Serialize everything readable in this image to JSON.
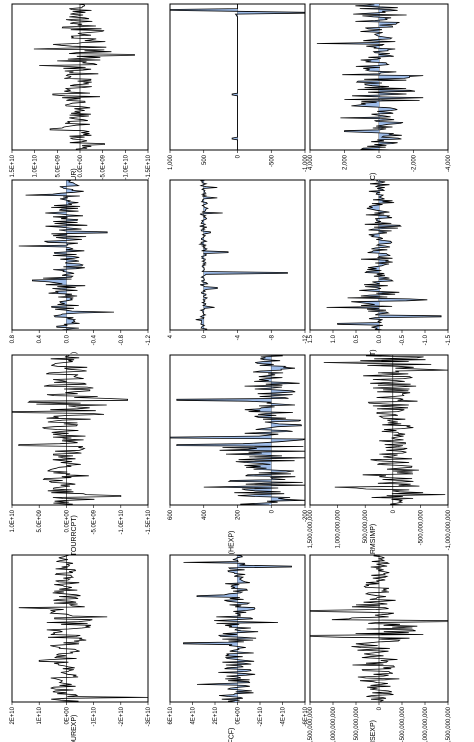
{
  "figure": {
    "orientation": "rotated-90-ccw",
    "area_color": "#9dbbe8",
    "line_color": "#000000"
  },
  "chart_data": [
    {
      "type": "area",
      "title": "D(GDPPC)",
      "ylim": [
        -4000,
        4000
      ],
      "ticks": [
        "4,000",
        "2,000",
        "0",
        "-2,000",
        "-4,000"
      ],
      "amplitude": [
        0.22,
        0.18,
        0.15,
        0.12,
        0.25,
        0.1,
        0.14,
        0.18,
        0.15,
        0.12,
        0.1,
        0.16,
        0.13,
        0.22,
        0.14,
        0.12,
        0.1,
        0.11,
        0.12,
        0.08,
        0.1,
        0.14,
        0.12,
        0.16,
        0.18,
        0.22,
        0.18,
        0.2,
        0.3,
        0.45,
        0.25,
        0.2,
        0.18,
        0.16,
        0.22,
        0.3,
        0.25,
        0.2,
        0.22,
        0.3,
        0.28,
        0.22,
        0.16,
        0.14,
        0.12,
        0.1,
        0.12,
        0.14,
        0.2,
        0.22,
        0.16,
        0.12,
        0.22,
        0.18,
        0.16,
        0.2,
        0.14,
        0.12,
        0.14,
        0.18
      ],
      "spikes": [
        [
          0.27,
          0.45
        ],
        [
          0.5,
          -0.22
        ],
        [
          0.64,
          -0.32
        ],
        [
          0.78,
          0.28
        ],
        [
          0.87,
          0.25
        ]
      ]
    },
    {
      "type": "area",
      "title": "D(ENRGINT)",
      "ylim": [
        -1.5,
        1.5
      ],
      "ticks": [
        "1.5",
        "1.0",
        "0.5",
        "0.0",
        "-0.5",
        "-1.0",
        "-1.5"
      ],
      "amplitude": [
        0.05,
        0.08,
        0.06,
        0.12,
        0.14,
        0.1,
        0.08,
        0.06,
        0.1,
        0.14,
        0.12,
        0.1,
        0.08,
        0.1,
        0.12,
        0.1,
        0.08,
        0.12,
        0.16,
        0.14,
        0.1,
        0.08,
        0.06,
        0.08,
        0.1,
        0.12,
        0.08,
        0.06,
        0.08,
        0.1,
        0.12,
        0.14,
        0.12,
        0.08,
        0.06,
        0.1,
        0.12,
        0.08,
        0.06,
        0.08,
        0.1,
        0.12,
        0.14,
        0.18,
        0.16,
        0.14,
        0.2,
        0.3,
        0.24,
        0.18,
        0.14,
        0.12,
        0.1,
        0.08,
        0.1,
        0.12,
        0.08,
        0.06,
        0.08,
        0.06
      ],
      "spikes": [
        [
          0.8,
          -0.35
        ],
        [
          0.85,
          0.38
        ],
        [
          0.91,
          -0.45
        ],
        [
          0.96,
          0.3
        ]
      ]
    },
    {
      "type": "line",
      "title": "D(ARMSIMP)",
      "ylim": [
        -1000000000,
        1500000000
      ],
      "ticks": [
        "1,500,000,000",
        "1,000,000,000",
        "500,000,000",
        "0",
        "-500,000,000",
        "-1,000,000,000"
      ],
      "amplitude": [
        0.4,
        0.35,
        0.3,
        0.28,
        0.25,
        0.3,
        0.2,
        0.22,
        0.25,
        0.18,
        0.15,
        0.18,
        0.2,
        0.22,
        0.18,
        0.15,
        0.12,
        0.15,
        0.18,
        0.2,
        0.15,
        0.12,
        0.1,
        0.12,
        0.15,
        0.12,
        0.1,
        0.12,
        0.14,
        0.16,
        0.12,
        0.1,
        0.12,
        0.15,
        0.12,
        0.1,
        0.12,
        0.14,
        0.12,
        0.1,
        0.14,
        0.18,
        0.16,
        0.12,
        0.14,
        0.18,
        0.2,
        0.22,
        0.18,
        0.16,
        0.2,
        0.25,
        0.22,
        0.3,
        0.28,
        0.26,
        0.3,
        0.25,
        0.22,
        0.2
      ],
      "spikes": [
        [
          0.05,
          0.5
        ],
        [
          0.1,
          -0.4
        ],
        [
          0.88,
          0.42
        ],
        [
          0.93,
          -0.38
        ]
      ]
    },
    {
      "type": "line",
      "title": "D(ARMSEXP)",
      "ylim": [
        -1500000000,
        1500000000
      ],
      "ticks": [
        "1,500,000,000",
        "1,000,000,000",
        "500,000,000",
        "0",
        "-500,000,000",
        "-1,000,000,000",
        "-1,500,000,000"
      ],
      "amplitude": [
        0.06,
        0.05,
        0.06,
        0.08,
        0.07,
        0.06,
        0.08,
        0.1,
        0.08,
        0.06,
        0.08,
        0.1,
        0.12,
        0.1,
        0.08,
        0.1,
        0.12,
        0.14,
        0.12,
        0.16,
        0.2,
        0.22,
        0.18,
        0.24,
        0.3,
        0.4,
        0.35,
        0.3,
        0.45,
        0.4,
        0.38,
        0.3,
        0.35,
        0.4,
        0.28,
        0.22,
        0.18,
        0.2,
        0.16,
        0.14,
        0.12,
        0.14,
        0.16,
        0.18,
        0.2,
        0.16,
        0.14,
        0.12,
        0.16,
        0.2,
        0.18,
        0.16,
        0.12,
        0.1,
        0.08,
        0.12,
        0.14,
        0.1,
        0.08,
        0.06
      ],
      "spikes": [
        [
          0.38,
          0.62
        ],
        [
          0.45,
          -0.58
        ],
        [
          0.55,
          0.5
        ]
      ]
    },
    {
      "type": "area",
      "title": "D(INF)",
      "ylim": [
        -1000,
        1000
      ],
      "ticks": [
        "1,000",
        "500",
        "0",
        "-500",
        "-1,000"
      ],
      "amplitude": [
        0.0,
        0.0,
        0.01,
        0.0,
        0.02,
        0.0,
        0.0,
        0.0,
        0.0,
        0.0,
        0.0,
        0.0,
        0.0,
        0.0,
        0.0,
        0.0,
        0.0,
        0.0,
        0.0,
        0.0,
        0.0,
        0.0,
        0.0,
        0.0,
        0.0,
        0.0,
        0.0,
        0.0,
        0.0,
        0.0,
        0.0,
        0.0,
        0.0,
        0.0,
        0.0,
        0.0,
        0.0,
        0.0,
        0.0,
        0.0,
        0.0,
        0.0,
        0.0,
        0.0,
        0.0,
        0.0,
        0.0,
        0.0,
        0.0,
        0.0,
        0.0,
        0.0,
        0.0,
        0.0,
        0.0,
        0.0,
        0.0,
        0.0,
        0.0,
        0.0
      ],
      "spikes": [
        [
          0.04,
          0.86
        ],
        [
          0.06,
          -0.92
        ],
        [
          0.62,
          0.04
        ],
        [
          0.92,
          0.04
        ]
      ]
    },
    {
      "type": "area",
      "title": "D(INCTB)",
      "ylim": [
        -12,
        4
      ],
      "ticks": [
        "4",
        "0",
        "-4",
        "-8",
        "-12"
      ],
      "amplitude": [
        0.02,
        0.02,
        0.03,
        0.02,
        0.03,
        0.02,
        0.03,
        0.02,
        0.02,
        0.03,
        0.02,
        0.03,
        0.02,
        0.03,
        0.02,
        0.03,
        0.02,
        0.02,
        0.03,
        0.02,
        0.03,
        0.02,
        0.03,
        0.02,
        0.02,
        0.03,
        0.02,
        0.03,
        0.02,
        0.03,
        0.02,
        0.03,
        0.02,
        0.02,
        0.03,
        0.02,
        0.03,
        0.02,
        0.03,
        0.02,
        0.02,
        0.03,
        0.02,
        0.03,
        0.02,
        0.03,
        0.02,
        0.03,
        0.02,
        0.02,
        0.03,
        0.02,
        0.03,
        0.02,
        0.03,
        0.02,
        0.02,
        0.03,
        0.02,
        0.03
      ],
      "spikes": [
        [
          0.05,
          -0.1
        ],
        [
          0.12,
          -0.1
        ],
        [
          0.22,
          -0.14
        ],
        [
          0.35,
          -0.05
        ],
        [
          0.48,
          -0.18
        ],
        [
          0.62,
          -0.62
        ],
        [
          0.72,
          -0.1
        ],
        [
          0.85,
          -0.08
        ],
        [
          0.93,
          0.06
        ]
      ]
    },
    {
      "type": "area",
      "title": "D(HEXP)",
      "ylim": [
        -200,
        600
      ],
      "ticks": [
        "600",
        "400",
        "200",
        "0",
        "-200"
      ],
      "amplitude": [
        0.1,
        0.12,
        0.1,
        0.15,
        0.12,
        0.18,
        0.15,
        0.2,
        0.16,
        0.12,
        0.18,
        0.22,
        0.2,
        0.16,
        0.22,
        0.18,
        0.16,
        0.2,
        0.18,
        0.16,
        0.2,
        0.24,
        0.22,
        0.2,
        0.25,
        0.28,
        0.3,
        0.26,
        0.35,
        0.3,
        0.28,
        0.26,
        0.32,
        0.36,
        0.3,
        0.28,
        0.4,
        0.5,
        0.45,
        0.38,
        0.3,
        0.28,
        0.32,
        0.28,
        0.24,
        0.26,
        0.3,
        0.34,
        0.28,
        0.3,
        0.32,
        0.35,
        0.38,
        0.3,
        0.28,
        0.32,
        0.26,
        0.22,
        0.24,
        0.26
      ],
      "spikes": [
        [
          0.3,
          0.7
        ],
        [
          0.55,
          0.8
        ],
        [
          0.6,
          0.7
        ],
        [
          0.88,
          0.5
        ],
        [
          0.97,
          -0.25
        ]
      ]
    },
    {
      "type": "area",
      "title": "D(GFCF)",
      "ylim": [
        -60000000000,
        60000000000
      ],
      "ticks": [
        "6E+10",
        "4E+10",
        "2E+10",
        "0E+00",
        "-2E+10",
        "-4E+10",
        "-6E+10"
      ],
      "amplitude": [
        0.04,
        0.05,
        0.04,
        0.06,
        0.05,
        0.08,
        0.1,
        0.08,
        0.07,
        0.06,
        0.08,
        0.1,
        0.09,
        0.08,
        0.1,
        0.12,
        0.1,
        0.08,
        0.1,
        0.14,
        0.18,
        0.16,
        0.14,
        0.12,
        0.16,
        0.18,
        0.22,
        0.2,
        0.18,
        0.16,
        0.14,
        0.16,
        0.18,
        0.2,
        0.16,
        0.14,
        0.12,
        0.14,
        0.16,
        0.14,
        0.12,
        0.1,
        0.12,
        0.14,
        0.12,
        0.1,
        0.12,
        0.16,
        0.14,
        0.12,
        0.1,
        0.12,
        0.14,
        0.12,
        0.1,
        0.12,
        0.14,
        0.16,
        0.14,
        0.12
      ],
      "spikes": [
        [
          0.05,
          0.4
        ],
        [
          0.08,
          -0.4
        ],
        [
          0.28,
          0.3
        ],
        [
          0.46,
          -0.3
        ],
        [
          0.6,
          0.4
        ],
        [
          0.88,
          0.3
        ]
      ]
    },
    {
      "type": "line",
      "title": "D(NETTOUR)",
      "ylim": [
        -15000000000,
        15000000000
      ],
      "ticks": [
        "1.5E+10",
        "1.0E+10",
        "5.0E+09",
        "0.0E+00",
        "-5.0E+09",
        "-1.0E+10",
        "-1.5E+10"
      ],
      "amplitude": [
        0.06,
        0.08,
        0.1,
        0.12,
        0.1,
        0.14,
        0.12,
        0.1,
        0.16,
        0.18,
        0.2,
        0.18,
        0.14,
        0.12,
        0.16,
        0.2,
        0.24,
        0.3,
        0.35,
        0.3,
        0.4,
        0.35,
        0.28,
        0.22,
        0.18,
        0.16,
        0.14,
        0.12,
        0.16,
        0.18,
        0.14,
        0.12,
        0.1,
        0.12,
        0.14,
        0.12,
        0.1,
        0.14,
        0.16,
        0.12,
        0.1,
        0.12,
        0.1,
        0.08,
        0.1,
        0.12,
        0.1,
        0.08,
        0.1,
        0.12,
        0.14,
        0.1,
        0.08,
        0.1,
        0.12,
        0.1,
        0.08,
        0.1,
        0.12,
        0.1
      ],
      "spikes": [
        [
          0.35,
          -0.4
        ],
        [
          0.42,
          0.3
        ],
        [
          0.62,
          0.2
        ],
        [
          0.86,
          0.22
        ],
        [
          0.96,
          -0.18
        ]
      ]
    },
    {
      "type": "area",
      "title": "D(NLTEXP)",
      "ylim": [
        -1.2,
        0.8
      ],
      "ticks": [
        "0.8",
        "0.4",
        "0.0",
        "-0.4",
        "-0.8",
        "-1.2"
      ],
      "amplitude": [
        0.08,
        0.1,
        0.12,
        0.1,
        0.14,
        0.12,
        0.1,
        0.08,
        0.1,
        0.14,
        0.12,
        0.1,
        0.14,
        0.18,
        0.16,
        0.12,
        0.1,
        0.14,
        0.16,
        0.12,
        0.1,
        0.12,
        0.16,
        0.2,
        0.18,
        0.14,
        0.12,
        0.1,
        0.14,
        0.12,
        0.1,
        0.14,
        0.18,
        0.16,
        0.12,
        0.14,
        0.12,
        0.1,
        0.16,
        0.2,
        0.22,
        0.18,
        0.14,
        0.12,
        0.1,
        0.14,
        0.16,
        0.12,
        0.1,
        0.12,
        0.14,
        0.1,
        0.08,
        0.1,
        0.12,
        0.14,
        0.12,
        0.1,
        0.08,
        0.1
      ],
      "spikes": [
        [
          0.1,
          0.3
        ],
        [
          0.35,
          -0.3
        ],
        [
          0.44,
          0.35
        ],
        [
          0.67,
          0.25
        ],
        [
          0.88,
          -0.35
        ]
      ]
    },
    {
      "type": "line",
      "title": "D(INTTOURRCPT)",
      "ylim": [
        -15000000000,
        10000000000
      ],
      "ticks": [
        "1.0E+10",
        "5.0E+09",
        "0.0E+00",
        "-5.0E+09",
        "-1.0E+10",
        "-1.5E+10"
      ],
      "amplitude": [
        0.1,
        0.12,
        0.14,
        0.12,
        0.16,
        0.14,
        0.18,
        0.2,
        0.16,
        0.14,
        0.12,
        0.16,
        0.2,
        0.24,
        0.22,
        0.2,
        0.26,
        0.3,
        0.28,
        0.24,
        0.3,
        0.36,
        0.34,
        0.3,
        0.26,
        0.22,
        0.2,
        0.24,
        0.2,
        0.18,
        0.16,
        0.2,
        0.18,
        0.16,
        0.14,
        0.12,
        0.14,
        0.16,
        0.14,
        0.12,
        0.1,
        0.12,
        0.14,
        0.12,
        0.1,
        0.14,
        0.16,
        0.14,
        0.18,
        0.2,
        0.18,
        0.16,
        0.14,
        0.12,
        0.16,
        0.2,
        0.24,
        0.22,
        0.18,
        0.14
      ],
      "spikes": [
        [
          0.3,
          -0.45
        ],
        [
          0.38,
          0.4
        ],
        [
          0.6,
          0.35
        ],
        [
          0.94,
          -0.4
        ]
      ]
    },
    {
      "type": "line",
      "title": "D(INTTOUREXP)",
      "ylim": [
        -30000000000,
        20000000000
      ],
      "ticks": [
        "2E+10",
        "1E+10",
        "0E+00",
        "-1E+10",
        "-2E+10",
        "-3E+10"
      ],
      "amplitude": [
        0.05,
        0.06,
        0.08,
        0.06,
        0.07,
        0.08,
        0.1,
        0.08,
        0.06,
        0.08,
        0.1,
        0.12,
        0.1,
        0.08,
        0.1,
        0.12,
        0.14,
        0.12,
        0.1,
        0.12,
        0.16,
        0.2,
        0.18,
        0.16,
        0.14,
        0.2,
        0.24,
        0.22,
        0.2,
        0.18,
        0.16,
        0.14,
        0.12,
        0.14,
        0.16,
        0.14,
        0.12,
        0.1,
        0.12,
        0.14,
        0.12,
        0.1,
        0.12,
        0.14,
        0.12,
        0.1,
        0.12,
        0.1,
        0.08,
        0.1,
        0.12,
        0.1,
        0.08,
        0.1,
        0.12,
        0.1,
        0.08,
        0.1,
        0.12,
        0.14
      ],
      "spikes": [
        [
          0.36,
          0.35
        ],
        [
          0.42,
          -0.3
        ],
        [
          0.72,
          0.2
        ],
        [
          0.97,
          -0.7
        ]
      ]
    }
  ]
}
